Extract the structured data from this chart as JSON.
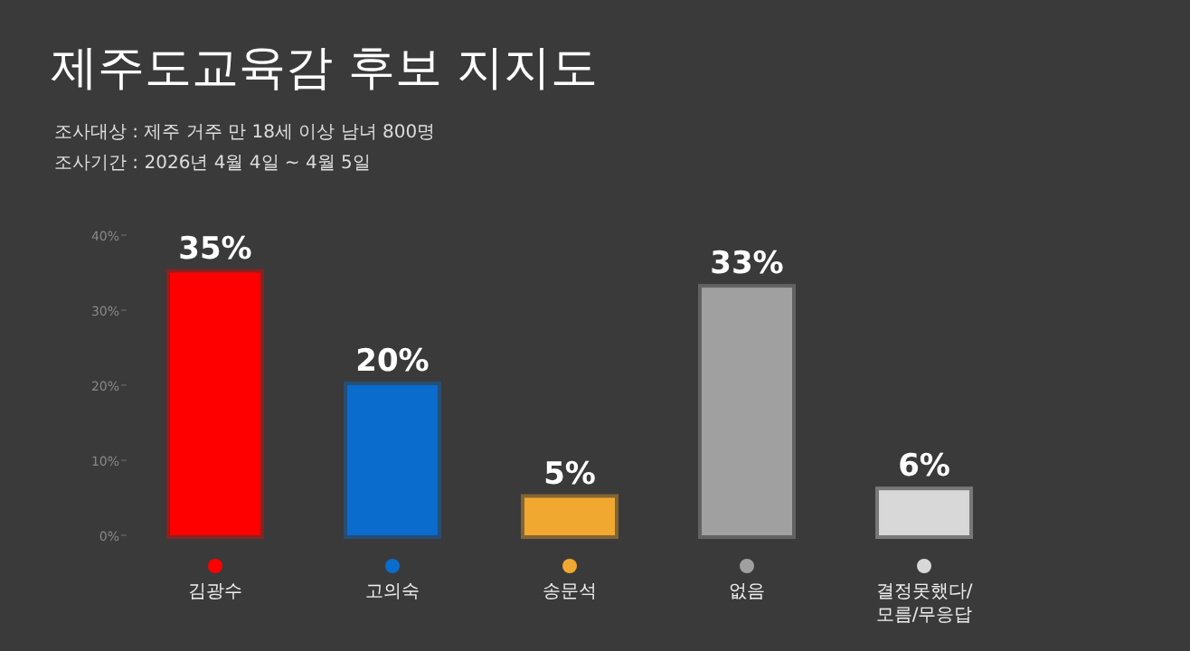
{
  "chart_data": {
    "type": "bar",
    "title": "제주도교육감 후보 지지도",
    "annotations": [
      "조사대상 : 제주 거주 만 18세 이상 남녀 800명",
      "조사기간 : 2026년 4월 4일 ~ 4월 5일"
    ],
    "categories": [
      "김광수",
      "고의숙",
      "송문석",
      "없음",
      "결정못했다/모름/무응답"
    ],
    "values": [
      35,
      20,
      5,
      33,
      6
    ],
    "colors": [
      "#ff0000",
      "#0a6ccc",
      "#f0a830",
      "#a0a0a0",
      "#d8d8d8"
    ],
    "value_labels": [
      "35%",
      "20%",
      "5%",
      "33%",
      "6%"
    ],
    "ylim": [
      0,
      40
    ],
    "yticks": [
      {
        "value": 0,
        "label": "0%"
      },
      {
        "value": 10,
        "label": "10%"
      },
      {
        "value": 20,
        "label": "20%"
      },
      {
        "value": 30,
        "label": "30%"
      },
      {
        "value": 40,
        "label": "40%"
      }
    ],
    "grid": false
  }
}
